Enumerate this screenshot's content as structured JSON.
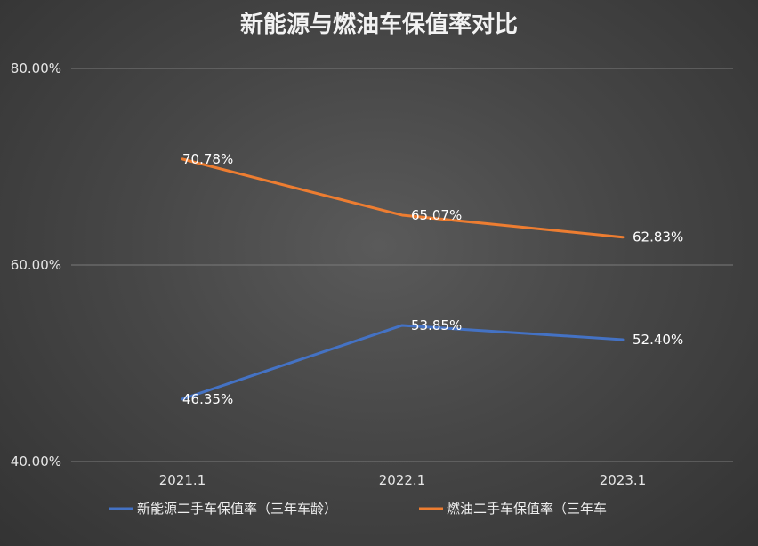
{
  "chart_data": {
    "type": "line",
    "title": "新能源与燃油车保值率对比",
    "categories": [
      "2021.1",
      "2022.1",
      "2023.1"
    ],
    "ylim": [
      40,
      80
    ],
    "yticks": [
      40,
      60,
      80
    ],
    "ytick_labels": [
      "40.00%",
      "60.00%",
      "80.00%"
    ],
    "grid": true,
    "legend_position": "bottom",
    "series": [
      {
        "name": "新能源二手车保值率（三年车龄）",
        "color": "#4472c4",
        "values": [
          46.35,
          53.85,
          52.4
        ],
        "labels": [
          "46.35%",
          "53.85%",
          "52.40%"
        ]
      },
      {
        "name": "燃油二手车保值率（三年车",
        "color": "#ed7d31",
        "values": [
          70.78,
          65.07,
          62.83
        ],
        "labels": [
          "70.78%",
          "65.07%",
          "62.83%"
        ]
      }
    ]
  }
}
